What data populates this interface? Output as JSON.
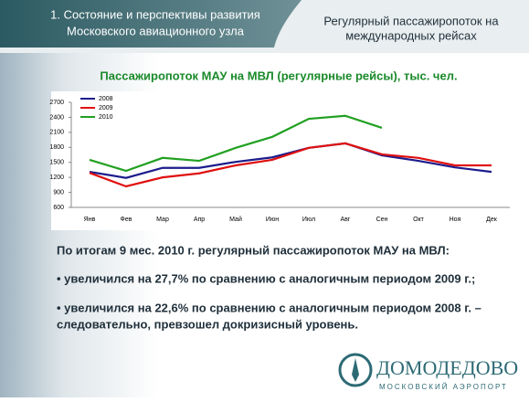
{
  "header": {
    "section_title": [
      "1. Состояние и перспективы развития",
      "Московского авиационного узла"
    ],
    "slide_title": [
      "Регулярный пассажиропоток на",
      "международных рейсах"
    ]
  },
  "chart_data": {
    "type": "line",
    "title": "Пассажиропоток МАУ на МВЛ (регулярные рейсы), тыс. чел.",
    "categories": [
      "Янв",
      "Фев",
      "Мар",
      "Апр",
      "Май",
      "Июн",
      "Июл",
      "Авг",
      "Сен",
      "Окт",
      "Ноя",
      "Дек"
    ],
    "series": [
      {
        "name": "2008",
        "color": "#1c1c8c",
        "values": [
          1310,
          1190,
          1390,
          1390,
          1510,
          1600,
          1790,
          1880,
          1640,
          1530,
          1400,
          1310
        ]
      },
      {
        "name": "2009",
        "color": "#e01010",
        "values": [
          1290,
          1020,
          1200,
          1280,
          1440,
          1550,
          1790,
          1880,
          1660,
          1590,
          1440,
          1440
        ]
      },
      {
        "name": "2010",
        "color": "#20a020",
        "values": [
          1550,
          1330,
          1590,
          1530,
          1790,
          2010,
          2370,
          2430,
          2190,
          null,
          null,
          null
        ]
      }
    ],
    "ylim": [
      600,
      2700
    ],
    "yticks": [
      600,
      900,
      1200,
      1500,
      1800,
      2100,
      2400,
      2700
    ],
    "grid": false,
    "legend": "upper-left"
  },
  "body": [
    "По итогам 9 мес. 2010 г. регулярный пассажиропоток МАУ на МВЛ:",
    "• увеличился на 27,7% по сравнению с аналогичным периодом 2009 г.;",
    "• увеличился на 22,6% по сравнению с аналогичным периодом 2008 г. –",
    "следовательно, превзошел докризисный уровень."
  ],
  "logo": {
    "name": "ДОМОДЕДОВО",
    "subtitle": "МОСКОВСКИЙ АЭРОПОРТ"
  }
}
